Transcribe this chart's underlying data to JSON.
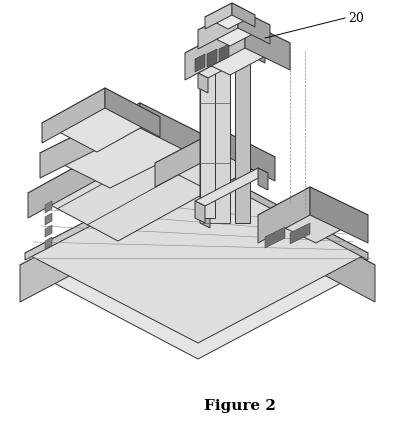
{
  "figure_caption": "Figure 2",
  "label": "20",
  "bg_color": "#ffffff",
  "title_fontsize": 11,
  "label_fontsize": 9,
  "figsize": [
    3.94,
    4.33
  ],
  "dpi": 100,
  "edge_color": "#333333",
  "face_top": "#e8e8e8",
  "face_left": "#c0c0c0",
  "face_right": "#a0a0a0",
  "face_dark": "#707070",
  "face_white": "#f0f0f0"
}
